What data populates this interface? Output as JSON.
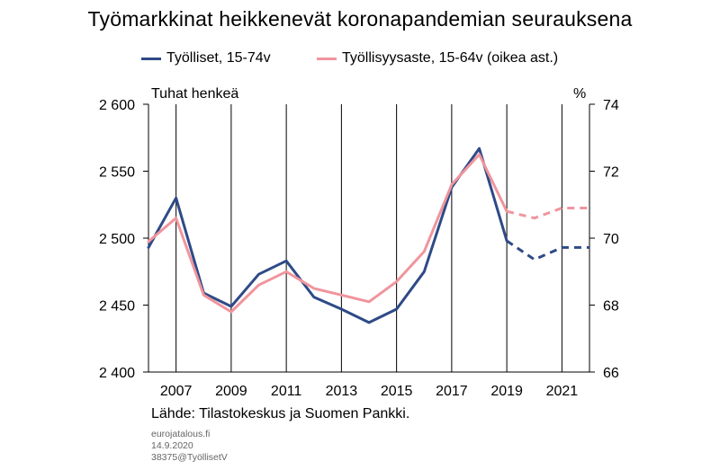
{
  "chart_data": {
    "type": "line",
    "title": "Työmarkkinat heikkenevät koronapandemian seurauksena",
    "left_axis_unit": "Tuhat henkeä",
    "right_axis_unit": "%",
    "x": [
      2006,
      2007,
      2008,
      2009,
      2010,
      2011,
      2012,
      2013,
      2014,
      2015,
      2016,
      2017,
      2018,
      2019,
      2020,
      2021,
      2022
    ],
    "x_tick_labels": [
      "2007",
      "2009",
      "2011",
      "2013",
      "2015",
      "2017",
      "2019",
      "2021"
    ],
    "left_axis": {
      "ylim": [
        2400,
        2600
      ],
      "ticks": [
        "2 600",
        "2 550",
        "2 500",
        "2 450",
        "2 400"
      ]
    },
    "right_axis": {
      "ylim": [
        66,
        74
      ],
      "ticks": [
        "74",
        "72",
        "70",
        "68",
        "66"
      ]
    },
    "series": [
      {
        "name": "Työlliset, 15-74v",
        "axis": "left",
        "color": "#2e4a87",
        "x": [
          2006,
          2007,
          2008,
          2009,
          2010,
          2011,
          2012,
          2013,
          2014,
          2015,
          2016,
          2017,
          2018,
          2019,
          2020,
          2021,
          2022
        ],
        "values": [
          2493,
          2530,
          2459,
          2449,
          2473,
          2483,
          2456,
          2447,
          2437,
          2447,
          2475,
          2538,
          2567,
          2498,
          2484,
          2493,
          2493
        ],
        "forecast_from": 2019
      },
      {
        "name": "Työllisyysaste, 15-64v (oikea ast.)",
        "axis": "right",
        "color": "#f0959d",
        "x": [
          2006,
          2007,
          2008,
          2009,
          2010,
          2011,
          2012,
          2013,
          2014,
          2015,
          2016,
          2017,
          2018,
          2019,
          2020,
          2021,
          2022
        ],
        "values": [
          69.9,
          70.6,
          68.3,
          67.8,
          68.6,
          69.0,
          68.5,
          68.3,
          68.1,
          68.7,
          69.6,
          71.6,
          72.5,
          70.8,
          70.6,
          70.9,
          70.9
        ],
        "forecast_from": 2019
      }
    ],
    "grid": "vertical"
  },
  "source": "Lähde: Tilastokeskus ja Suomen Pankki.",
  "meta": [
    "eurojatalous.fi",
    "14.9.2020",
    "38375@TyöllisetV"
  ]
}
